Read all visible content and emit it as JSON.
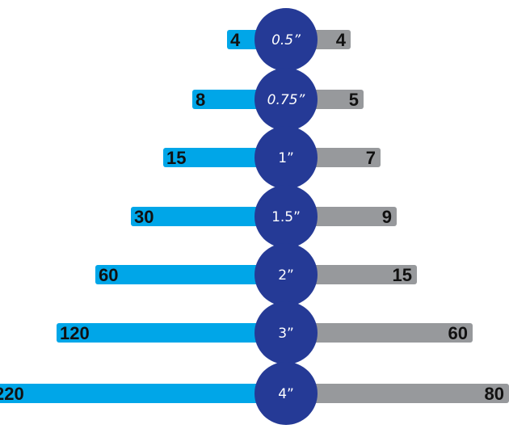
{
  "chart_data": {
    "type": "bar",
    "categories": [
      "0.5”",
      "0.75”",
      "1”",
      "1.5”",
      "2”",
      "3”",
      "4”"
    ],
    "series": [
      {
        "values": [
          4,
          8,
          15,
          30,
          60,
          120,
          220
        ],
        "color": "#00a6e8"
      },
      {
        "values": [
          4,
          5,
          7,
          9,
          15,
          60,
          80
        ],
        "color": "#97999c"
      }
    ],
    "title": "",
    "xlabel": "",
    "ylabel": "",
    "circle_color": "#253a96"
  }
}
